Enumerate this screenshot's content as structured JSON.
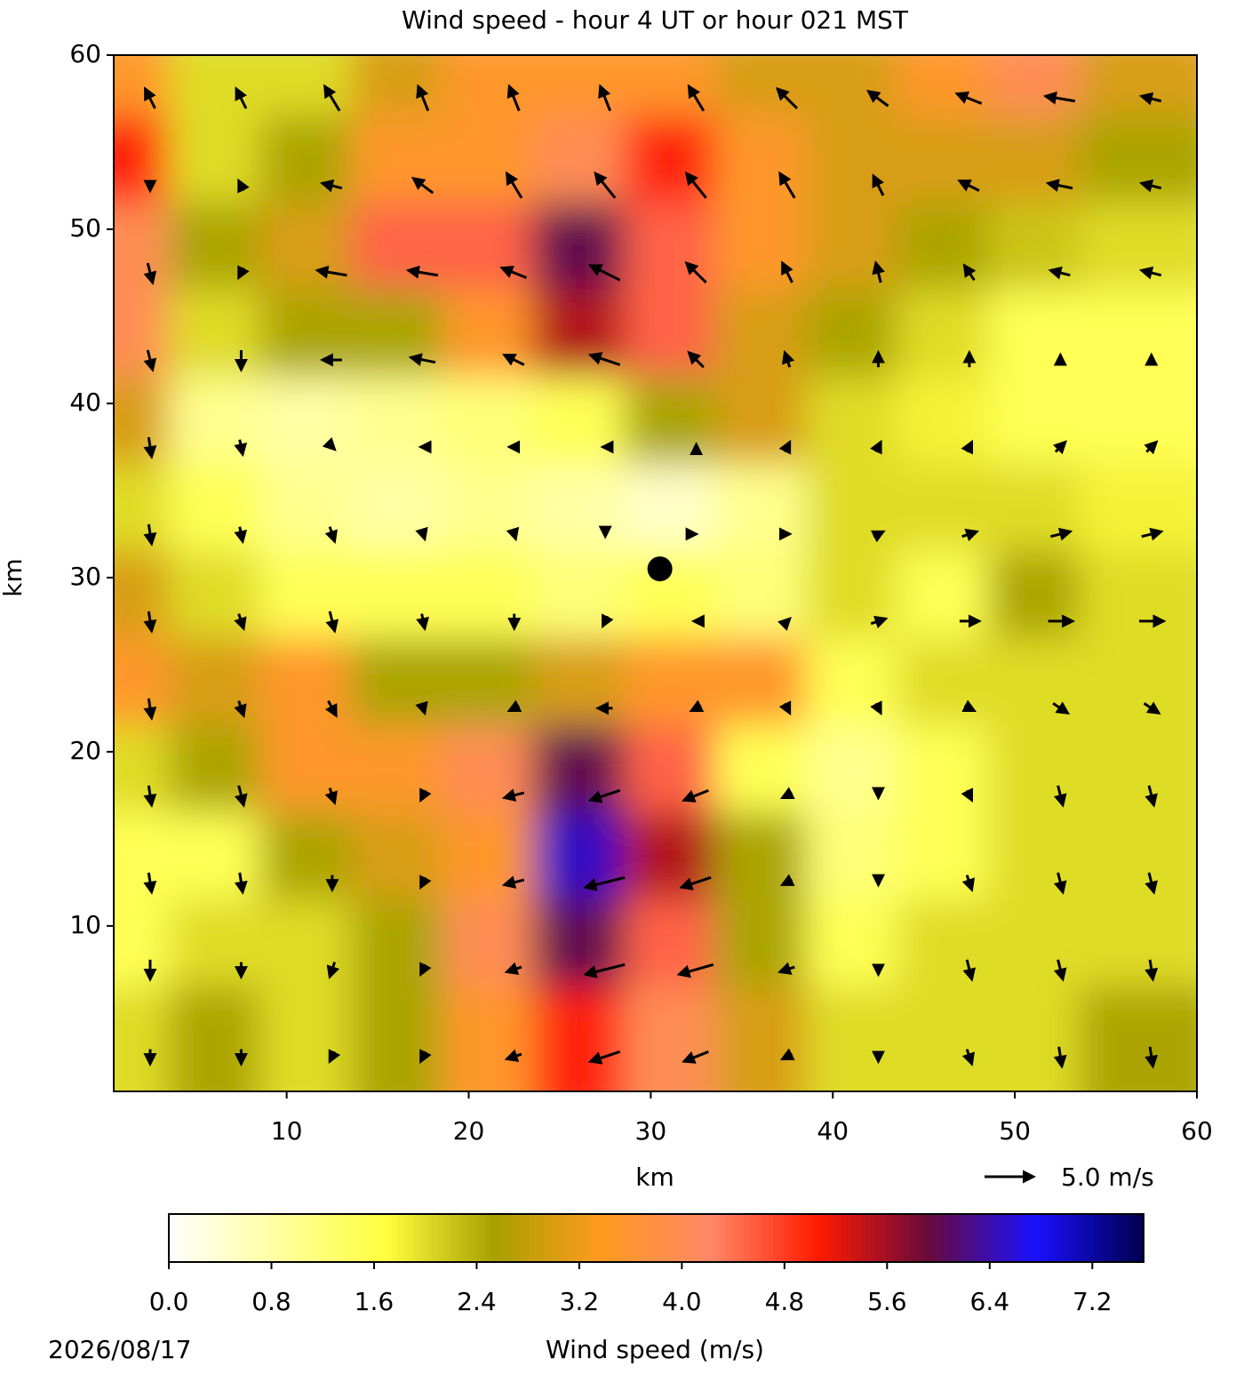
{
  "chart_data": {
    "type": "heatmap-quiver",
    "title": "Wind speed - hour 4 UT or hour 021 MST",
    "x_label": "km",
    "y_label": "km",
    "xlim": [
      0.5,
      60
    ],
    "ylim": [
      0.5,
      60
    ],
    "xticks": [
      10,
      20,
      30,
      40,
      50,
      60
    ],
    "yticks": [
      10,
      20,
      30,
      40,
      50,
      60
    ],
    "x": [
      2.5,
      7.5,
      12.5,
      17.5,
      22.5,
      27.5,
      32.5,
      37.5,
      42.5,
      47.5,
      52.5,
      57.5
    ],
    "y": [
      57.5,
      52.5,
      47.5,
      42.5,
      37.5,
      32.5,
      27.5,
      22.5,
      17.5,
      12.5,
      7.5,
      2.5
    ],
    "speed": [
      [
        3.5,
        2,
        2,
        3,
        3.5,
        3.5,
        3.5,
        3,
        3,
        3.5,
        4,
        3
      ],
      [
        5,
        2,
        2.5,
        3.5,
        3.5,
        4,
        5,
        3.5,
        3,
        3,
        3,
        2.5
      ],
      [
        4,
        2.5,
        3,
        4.5,
        4.5,
        6,
        4.5,
        3.5,
        3,
        2.5,
        2.2,
        2
      ],
      [
        4,
        2,
        2.5,
        2.5,
        3.5,
        5.5,
        4.5,
        3,
        2.5,
        2,
        1.5,
        1.5
      ],
      [
        3,
        1,
        0.8,
        1,
        1.2,
        1.5,
        2.5,
        3,
        2,
        1.8,
        1.5,
        1.5
      ],
      [
        2,
        1.5,
        1,
        0.8,
        1,
        0.8,
        0.5,
        1,
        2,
        2,
        2,
        1.8
      ],
      [
        3,
        2,
        1.5,
        1.5,
        1.5,
        1.2,
        1.5,
        1.2,
        2,
        1.5,
        2.5,
        2
      ],
      [
        3.5,
        3,
        3.5,
        2.5,
        2.5,
        3,
        3.5,
        3.5,
        1.5,
        2,
        2,
        2
      ],
      [
        2,
        2.5,
        3.5,
        3.5,
        4,
        6,
        4.5,
        1.5,
        1,
        1.5,
        2,
        2
      ],
      [
        1.5,
        1.5,
        2.5,
        3,
        3.5,
        6.5,
        5.5,
        2.5,
        1.2,
        1.5,
        2,
        2
      ],
      [
        1.5,
        2,
        2,
        2.5,
        4,
        6,
        4.5,
        2.5,
        1.5,
        2,
        2,
        2
      ],
      [
        2,
        2.5,
        2,
        2.5,
        3.5,
        5,
        4,
        3,
        2,
        2,
        2,
        2.5
      ]
    ],
    "u": [
      [
        -1,
        -1,
        -1.5,
        -1,
        -1,
        -1,
        -1.5,
        -2,
        -2,
        -2.5,
        -3,
        -2
      ],
      [
        0,
        -0.5,
        -2,
        -2,
        -1.5,
        -2,
        -2,
        -1.5,
        -1,
        -2,
        -2.5,
        -2
      ],
      [
        0.5,
        -0.5,
        -3,
        -3,
        -2.5,
        -3,
        -2,
        -1,
        -0.5,
        -1,
        -2,
        -2
      ],
      [
        0.5,
        0,
        -2,
        -2.5,
        -2,
        -3,
        -1.5,
        -0.5,
        0,
        0,
        0,
        0
      ],
      [
        0.3,
        0.3,
        0.5,
        -0.5,
        -1,
        -0.5,
        0,
        0.5,
        0.5,
        0.5,
        1,
        1
      ],
      [
        0.3,
        0.3,
        0.5,
        0.3,
        0.3,
        0,
        0,
        0.5,
        1,
        1.5,
        2,
        2
      ],
      [
        0.3,
        0.5,
        0.5,
        0.3,
        0,
        -0.5,
        -0.5,
        0.5,
        1.5,
        2,
        2.5,
        2.5
      ],
      [
        0.3,
        0.5,
        0.8,
        0.3,
        -1,
        -1.5,
        -1,
        0.5,
        0.5,
        1,
        1.5,
        1.5
      ],
      [
        0.3,
        0.5,
        0.5,
        -0.5,
        -2,
        -3,
        -2.5,
        -1,
        0,
        0.5,
        0.5,
        0.5
      ],
      [
        0.3,
        0.3,
        0,
        -0.5,
        -2,
        -4,
        -3,
        -1,
        0,
        0.5,
        0.5,
        0.5
      ],
      [
        0,
        0,
        -0.5,
        -0.5,
        -1.5,
        -4,
        -3.5,
        -1.5,
        0,
        0.5,
        0.5,
        0.3
      ],
      [
        0,
        0,
        -0.5,
        -0.5,
        -1.5,
        -3,
        -2.5,
        -1,
        0,
        0.5,
        0.3,
        0.3
      ]
    ],
    "v": [
      [
        2,
        2,
        2.5,
        2.5,
        2.5,
        2.5,
        2.5,
        2,
        1.5,
        1,
        0.5,
        0.5
      ],
      [
        -1,
        1,
        0.5,
        1.5,
        2.5,
        2.5,
        2.5,
        2.5,
        2,
        1,
        0.5,
        0.5
      ],
      [
        -2,
        -1,
        0.5,
        0.5,
        1,
        1.5,
        2,
        2,
        2,
        1.5,
        0.5,
        0.5
      ],
      [
        -2,
        -2,
        0,
        0.5,
        1,
        1,
        1.5,
        1.5,
        1.5,
        1.5,
        1,
        1
      ],
      [
        -2,
        -1.5,
        -0.5,
        0,
        0,
        0,
        0.5,
        1,
        1,
        1,
        1,
        1
      ],
      [
        -2,
        -1.5,
        -1.5,
        -1,
        -1,
        -0.5,
        0,
        0,
        0.5,
        0.5,
        0.5,
        0.5
      ],
      [
        -2,
        -1.5,
        -2,
        -1.5,
        -1.5,
        -1,
        0,
        0.5,
        0.5,
        0,
        0,
        0
      ],
      [
        -2,
        -1.5,
        -1.5,
        -1,
        -0.5,
        0,
        -0.5,
        -1,
        -1,
        -0.5,
        -1,
        -1
      ],
      [
        -2,
        -2,
        -1.5,
        -1,
        -0.5,
        -1,
        -1,
        -0.5,
        -0.5,
        -1,
        -2,
        -2
      ],
      [
        -2,
        -2,
        -1.5,
        -1,
        -0.5,
        -1,
        -1,
        -0.5,
        -0.5,
        -1.5,
        -2,
        -2
      ],
      [
        -2,
        -1.5,
        -1.5,
        -1,
        -0.5,
        -1,
        -1,
        -0.5,
        -1,
        -2,
        -2,
        -2
      ],
      [
        -1.5,
        -1.5,
        -1,
        -1,
        -0.5,
        -1,
        -1,
        -0.5,
        -1,
        -1.5,
        -2,
        -2
      ]
    ],
    "marker": {
      "x": 30.5,
      "y": 30.5
    },
    "quiver_key": {
      "value": 5.0,
      "label": "5.0 m/s"
    },
    "colormap": [
      "#ffffff",
      "#ffffa0",
      "#ffff40",
      "#a8a000",
      "#ff9a20",
      "#ff8868",
      "#ff1a00",
      "#6a0a3a",
      "#1a10ff",
      "#000050"
    ],
    "clim": [
      0,
      7.6
    ],
    "colorbar_label": "Wind speed (m/s)",
    "colorbar_ticks": [
      {
        "value": 0,
        "label": "0.0"
      },
      0.8,
      1.6,
      2.4,
      3.2,
      {
        "value": 4,
        "label": "4.0"
      },
      4.8,
      5.6,
      6.4,
      7.2
    ],
    "date": "2026/08/17"
  }
}
